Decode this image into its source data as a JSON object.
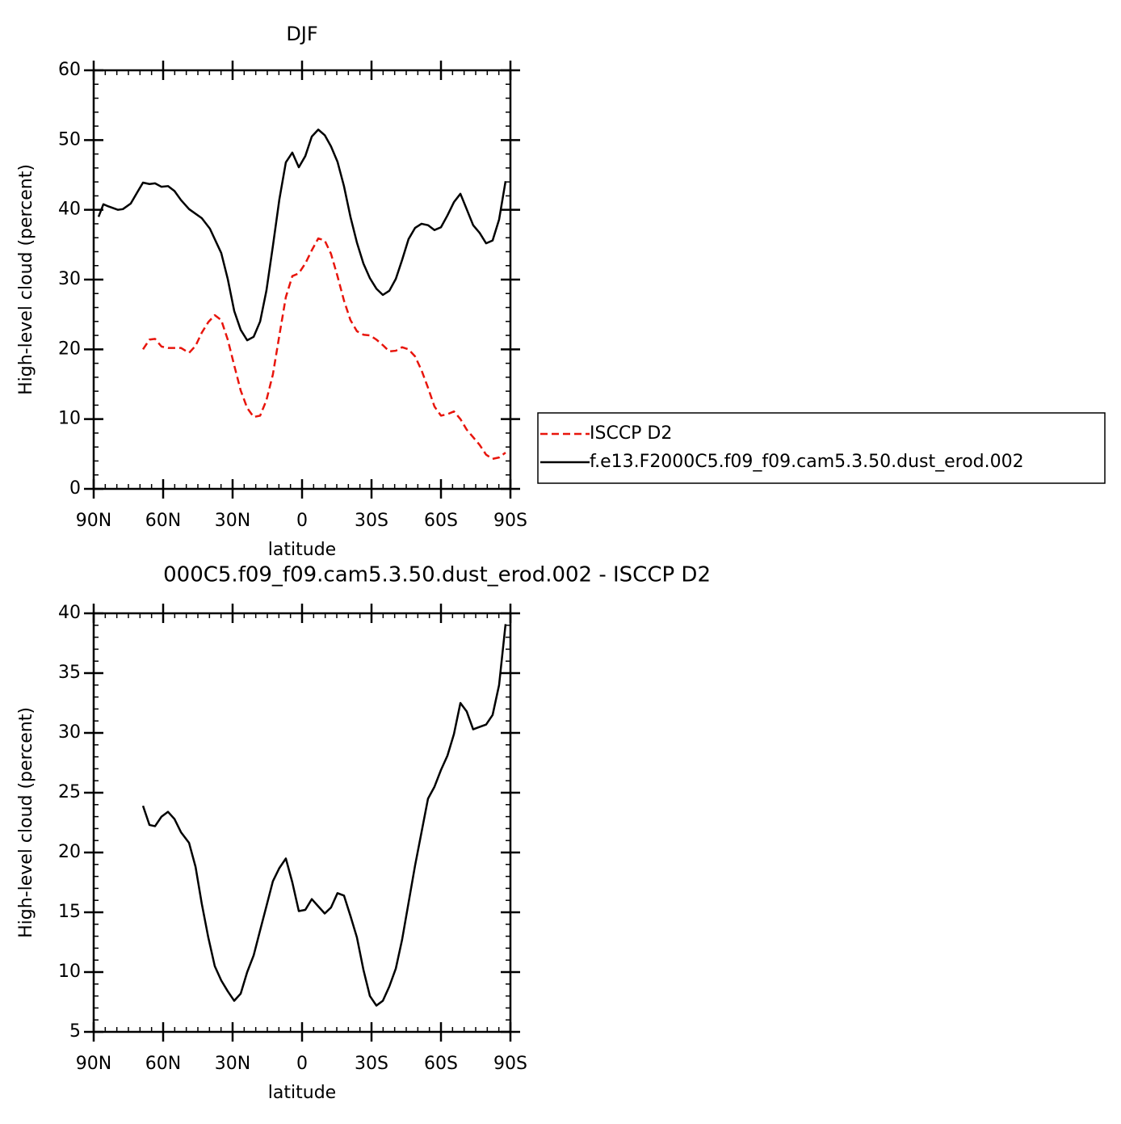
{
  "chart_data": [
    {
      "type": "line",
      "title": "DJF",
      "x_label": "latitude",
      "y_label": "High-level cloud (percent)",
      "xlim": [
        90,
        -90
      ],
      "xticks": [
        {
          "value": 90,
          "label": "90N"
        },
        {
          "value": 60,
          "label": "60N"
        },
        {
          "value": 30,
          "label": "30N"
        },
        0,
        {
          "value": -30,
          "label": "30S"
        },
        {
          "value": -60,
          "label": "60S"
        },
        {
          "value": -90,
          "label": "90S"
        }
      ],
      "ylim": [
        0,
        60
      ],
      "yticks": [
        0,
        10,
        20,
        30,
        40,
        50,
        60
      ],
      "legend": "right",
      "series": [
        {
          "name": "ISCCP D2",
          "color": "#e8150c",
          "line_style": "dashed",
          "x": [
            68.7,
            65.9,
            63.5,
            60.7,
            57.9,
            52.3,
            48.8,
            46.0,
            43.3,
            40.5,
            37.7,
            34.9,
            32.1,
            29.3,
            26.5,
            23.7,
            20.9,
            18.1,
            15.4,
            12.6,
            9.8,
            7.0,
            4.2,
            1.4,
            -1.4,
            -4.2,
            -7.0,
            -9.8,
            -12.5,
            -15.3,
            -18.1,
            -20.9,
            -23.7,
            -26.5,
            -29.3,
            -32.1,
            -34.9,
            -37.7,
            -40.5,
            -43.2,
            -46.0,
            -48.8,
            -51.6,
            -54.4,
            -57.2,
            -60.0,
            -62.8,
            -65.6,
            -68.4,
            -71.1,
            -73.9,
            -76.7,
            -79.5,
            -82.3,
            -85.1,
            -87.9
          ],
          "values": [
            20.0,
            21.4,
            21.5,
            20.4,
            20.2,
            20.2,
            19.5,
            20.5,
            22.4,
            23.9,
            24.9,
            24.2,
            21.4,
            17.7,
            14.1,
            11.6,
            10.3,
            10.5,
            12.7,
            16.4,
            22.0,
            27.5,
            30.5,
            30.9,
            32.3,
            34.2,
            35.9,
            35.6,
            33.7,
            30.5,
            27.0,
            24.2,
            22.6,
            22.1,
            22.0,
            21.4,
            20.6,
            19.7,
            19.8,
            20.3,
            20.0,
            19.0,
            17.0,
            14.5,
            11.8,
            10.5,
            10.7,
            11.1,
            10.0,
            8.5,
            7.4,
            6.3,
            4.9,
            4.3,
            4.5,
            5.2
          ]
        },
        {
          "name": "f.e13.F2000C5.f09_f09.cam5.3.50.dust_erod.002",
          "color": "#000000",
          "line_style": "solid",
          "x": [
            87.9,
            85.8,
            83.7,
            79.5,
            77.4,
            74.0,
            71.2,
            68.7,
            65.9,
            63.5,
            60.7,
            57.9,
            55.1,
            52.3,
            48.8,
            43.3,
            39.8,
            34.9,
            32.1,
            29.3,
            26.5,
            23.7,
            20.9,
            18.1,
            15.4,
            12.6,
            9.8,
            7.0,
            4.2,
            1.4,
            -1.4,
            -4.2,
            -7.0,
            -9.8,
            -12.5,
            -15.3,
            -18.1,
            -20.9,
            -23.7,
            -26.5,
            -29.3,
            -32.1,
            -34.9,
            -37.7,
            -40.5,
            -43.2,
            -46.0,
            -48.8,
            -51.6,
            -54.4,
            -57.2,
            -60.0,
            -62.8,
            -65.6,
            -68.4,
            -71.1,
            -73.9,
            -76.7,
            -79.5,
            -82.3,
            -85.1,
            -87.9
          ],
          "values": [
            39.0,
            40.8,
            40.5,
            40.0,
            40.1,
            40.9,
            42.5,
            43.9,
            43.7,
            43.8,
            43.3,
            43.4,
            42.7,
            41.4,
            40.1,
            38.8,
            37.3,
            33.8,
            30.1,
            25.5,
            22.8,
            21.3,
            21.8,
            24.0,
            28.4,
            34.8,
            41.5,
            46.8,
            48.2,
            46.1,
            47.7,
            50.5,
            51.5,
            50.7,
            49.1,
            46.9,
            43.4,
            39.0,
            35.3,
            32.3,
            30.2,
            28.7,
            27.8,
            28.4,
            30.1,
            32.8,
            35.8,
            37.4,
            38.0,
            37.8,
            37.1,
            37.5,
            39.2,
            41.1,
            42.3,
            40.1,
            37.8,
            36.7,
            35.2,
            35.6,
            38.6,
            44.1
          ]
        }
      ]
    },
    {
      "type": "line",
      "title": "000C5.f09_f09.cam5.3.50.dust_erod.002 - ISCCP D2",
      "x_label": "latitude",
      "y_label": "High-level cloud (percent)",
      "xlim": [
        90,
        -90
      ],
      "xticks": [
        {
          "value": 90,
          "label": "90N"
        },
        {
          "value": 60,
          "label": "60N"
        },
        {
          "value": 30,
          "label": "30N"
        },
        0,
        {
          "value": -30,
          "label": "30S"
        },
        {
          "value": -60,
          "label": "60S"
        },
        {
          "value": -90,
          "label": "90S"
        }
      ],
      "ylim": [
        5,
        40
      ],
      "yticks": [
        5,
        10,
        15,
        20,
        25,
        30,
        35,
        40
      ],
      "series": [
        {
          "color": "#000000",
          "line_style": "solid",
          "x": [
            68.7,
            65.9,
            63.5,
            60.7,
            57.9,
            55.1,
            52.3,
            48.8,
            46.0,
            43.3,
            40.5,
            37.7,
            34.9,
            32.1,
            29.3,
            26.5,
            23.7,
            20.9,
            18.1,
            15.4,
            12.6,
            9.8,
            7.0,
            4.2,
            1.4,
            -1.4,
            -4.2,
            -7.0,
            -9.8,
            -12.5,
            -15.3,
            -18.1,
            -20.9,
            -23.7,
            -26.5,
            -29.3,
            -32.1,
            -34.9,
            -37.7,
            -40.5,
            -43.2,
            -46.0,
            -48.8,
            -51.6,
            -54.4,
            -57.2,
            -60.0,
            -62.8,
            -65.6,
            -68.4,
            -71.1,
            -73.9,
            -76.7,
            -79.5,
            -82.3,
            -85.1,
            -87.9
          ],
          "values": [
            23.9,
            22.3,
            22.2,
            23.0,
            23.4,
            22.8,
            21.7,
            20.8,
            18.8,
            15.7,
            12.9,
            10.5,
            9.3,
            8.4,
            7.6,
            8.2,
            10.0,
            11.4,
            13.5,
            15.5,
            17.6,
            18.7,
            19.5,
            17.5,
            15.1,
            15.2,
            16.1,
            15.5,
            14.9,
            15.4,
            16.6,
            16.4,
            14.7,
            12.9,
            10.2,
            8.0,
            7.2,
            7.6,
            8.8,
            10.3,
            12.7,
            15.8,
            18.9,
            21.7,
            24.5,
            25.5,
            26.9,
            28.1,
            29.9,
            32.5,
            31.8,
            30.3,
            30.5,
            30.7,
            31.5,
            34.0,
            39.1
          ]
        }
      ]
    }
  ]
}
